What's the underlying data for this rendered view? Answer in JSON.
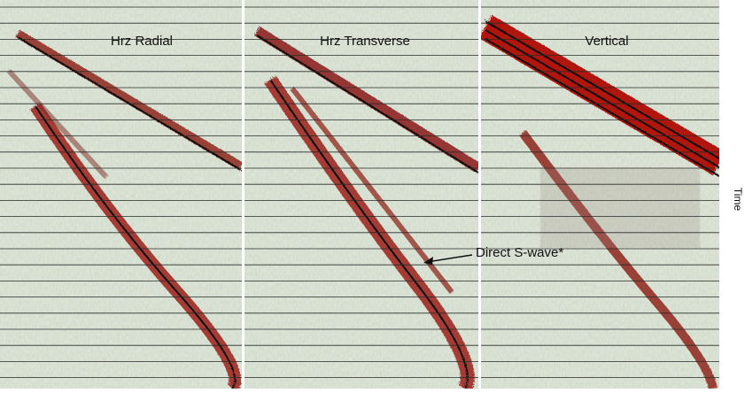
{
  "panels": [
    {
      "label": "Hrz Radial"
    },
    {
      "label": "Hrz Transverse"
    },
    {
      "label": "Vertical"
    }
  ],
  "annotation": "Direct S-wave*",
  "axis_label": "Time"
}
